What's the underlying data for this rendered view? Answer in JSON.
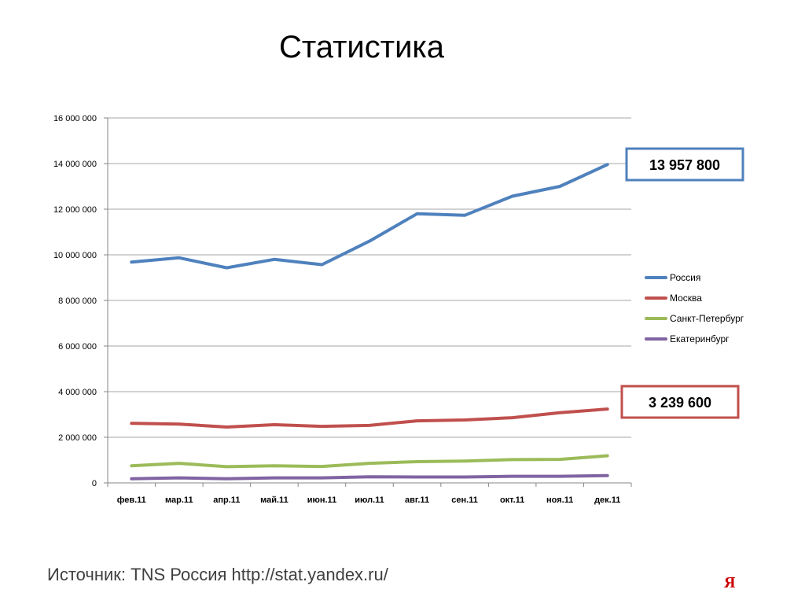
{
  "slide": {
    "title": "Статистика",
    "source": "Источник: TNS Россия http://stat.yandex.ru/",
    "logo": "Я"
  },
  "colors": {
    "Россия": "#4f81bd",
    "Москва": "#c0504d",
    "Санкт-Петербург": "#9bbb59",
    "Екатеринбург": "#8064a2",
    "grid": "#a6a6a6",
    "axis": "#868686"
  },
  "chart_data": {
    "type": "line",
    "title": "",
    "xlabel": "",
    "ylabel": "",
    "ylim": [
      0,
      16000000
    ],
    "yticks": [
      "0",
      "2 000 000",
      "4 000 000",
      "6 000 000",
      "8 000 000",
      "10 000 000",
      "12 000 000",
      "14 000 000",
      "16 000 000"
    ],
    "grid": true,
    "legend": "right",
    "categories": [
      "фев.11",
      "мар.11",
      "апр.11",
      "май.11",
      "июн.11",
      "июл.11",
      "авг.11",
      "сен.11",
      "окт.11",
      "ноя.11",
      "дек.11"
    ],
    "series": [
      {
        "name": "Россия",
        "values": [
          9680000,
          9870000,
          9430000,
          9800000,
          9570000,
          10600000,
          11800000,
          11730000,
          12570000,
          13000000,
          13957800
        ]
      },
      {
        "name": "Москва",
        "values": [
          2610000,
          2580000,
          2450000,
          2550000,
          2480000,
          2520000,
          2720000,
          2760000,
          2860000,
          3080000,
          3239600
        ]
      },
      {
        "name": "Санкт-Петербург",
        "values": [
          750000,
          860000,
          710000,
          750000,
          720000,
          860000,
          930000,
          960000,
          1020000,
          1030000,
          1190000
        ]
      },
      {
        "name": "Екатеринбург",
        "values": [
          180000,
          220000,
          180000,
          220000,
          220000,
          270000,
          260000,
          260000,
          290000,
          290000,
          320000
        ]
      }
    ],
    "annotations": [
      {
        "text": "13 957 800",
        "series": "Россия",
        "color": "#4f81bd"
      },
      {
        "text": "3 239 600",
        "series": "Москва",
        "color": "#c0504d"
      }
    ]
  }
}
